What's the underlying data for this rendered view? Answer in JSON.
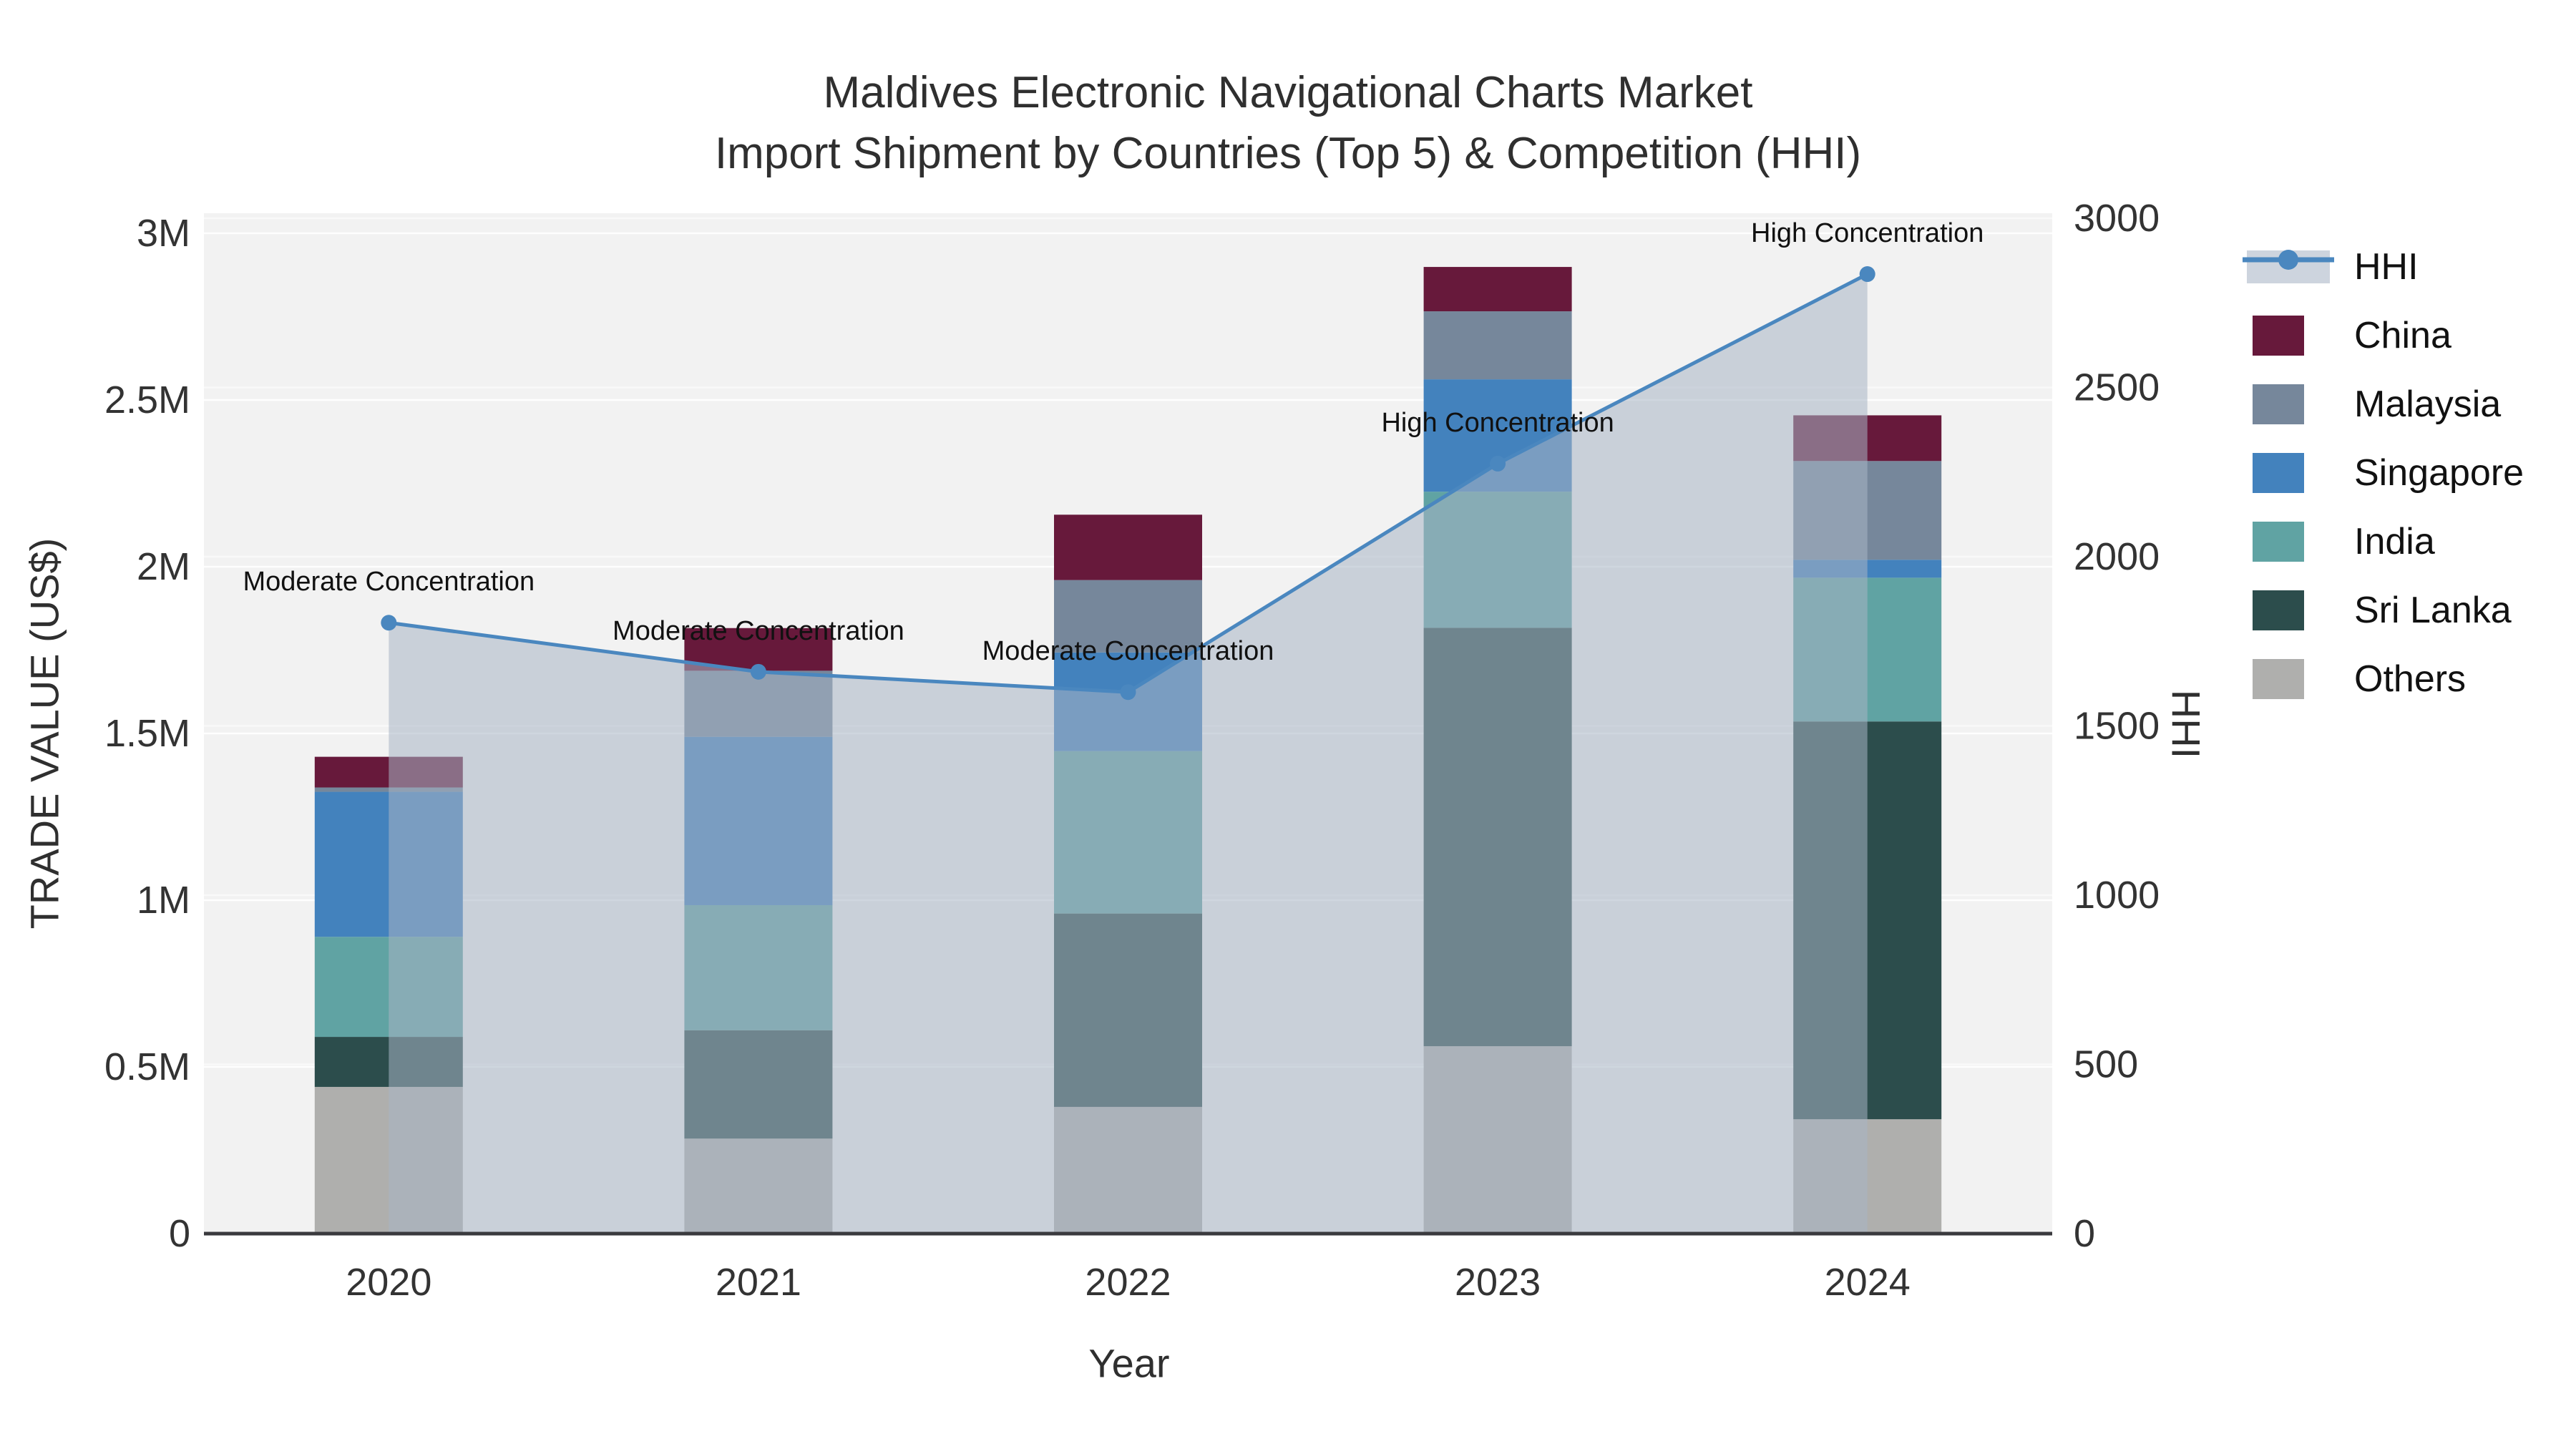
{
  "title": {
    "line1": "Maldives Electronic Navigational Charts Market",
    "line2": "Import Shipment by Countries (Top 5) & Competition (HHI)"
  },
  "axes": {
    "y_left": {
      "ticks": [
        "0",
        "0.5M",
        "1M",
        "1.5M",
        "2M",
        "2.5M",
        "3M"
      ],
      "tick_values": [
        0,
        0.5,
        1,
        1.5,
        2,
        2.5,
        3
      ]
    },
    "y_right": {
      "ticks": [
        "0",
        "500",
        "1000",
        "1500",
        "2000",
        "2500",
        "3000"
      ],
      "tick_values": [
        0,
        500,
        1000,
        1500,
        2000,
        2500,
        3000
      ]
    },
    "x": {
      "categories": [
        "2020",
        "2021",
        "2022",
        "2023",
        "2024"
      ]
    }
  },
  "chart_data": {
    "type": "bar+line",
    "title": "Maldives Electronic Navigational Charts Market — Import Shipment by Countries (Top 5) & Competition (HHI)",
    "xlabel": "Year",
    "ylabel": "TRADE VALUE (US$)",
    "y2label": "HHI",
    "ylim": [
      0,
      3000000
    ],
    "y2lim": [
      0,
      3000
    ],
    "grid": true,
    "legend_position": "right",
    "categories": [
      "2020",
      "2021",
      "2022",
      "2023",
      "2024"
    ],
    "stack_order_bottom_to_top": [
      "Others",
      "Sri Lanka",
      "India",
      "Singapore",
      "Malaysia",
      "China"
    ],
    "series": [
      {
        "name": "China",
        "color": "#67193B",
        "values": [
          92000,
          128000,
          196000,
          133000,
          137000
        ]
      },
      {
        "name": "Malaysia",
        "color": "#76879B",
        "values": [
          13000,
          198000,
          217000,
          204000,
          296000
        ]
      },
      {
        "name": "Singapore",
        "color": "#4382BD",
        "values": [
          435000,
          505000,
          296000,
          337000,
          54000
        ]
      },
      {
        "name": "India",
        "color": "#60A3A3",
        "values": [
          300000,
          375000,
          487000,
          408000,
          431000
        ]
      },
      {
        "name": "Sri Lanka",
        "color": "#2C4D4C",
        "values": [
          150000,
          325000,
          580000,
          1255000,
          1193000
        ]
      },
      {
        "name": "Others",
        "color": "#AFAFAD",
        "values": [
          440000,
          285000,
          380000,
          562000,
          343000
        ]
      }
    ],
    "hhi": {
      "name": "HHI",
      "color": "#4A87BF",
      "fill_color": "rgba(167,180,196,0.55)",
      "legend_band_color": "#CDD4DE",
      "values": [
        1805,
        1660,
        1600,
        2275,
        2835
      ]
    },
    "annotations": [
      {
        "year": "2020",
        "text": "Moderate Concentration"
      },
      {
        "year": "2021",
        "text": "Moderate Concentration"
      },
      {
        "year": "2022",
        "text": "Moderate Concentration"
      },
      {
        "year": "2023",
        "text": "High Concentration"
      },
      {
        "year": "2024",
        "text": "High Concentration"
      }
    ]
  },
  "colors": {
    "plot_background": "#F2F2F2",
    "figure_background": "#FFFFFF",
    "axis_line": "#3A3A3E",
    "gridline": "#FFFFFF",
    "tick_text": "#333333",
    "annotation_text": "#111111"
  }
}
